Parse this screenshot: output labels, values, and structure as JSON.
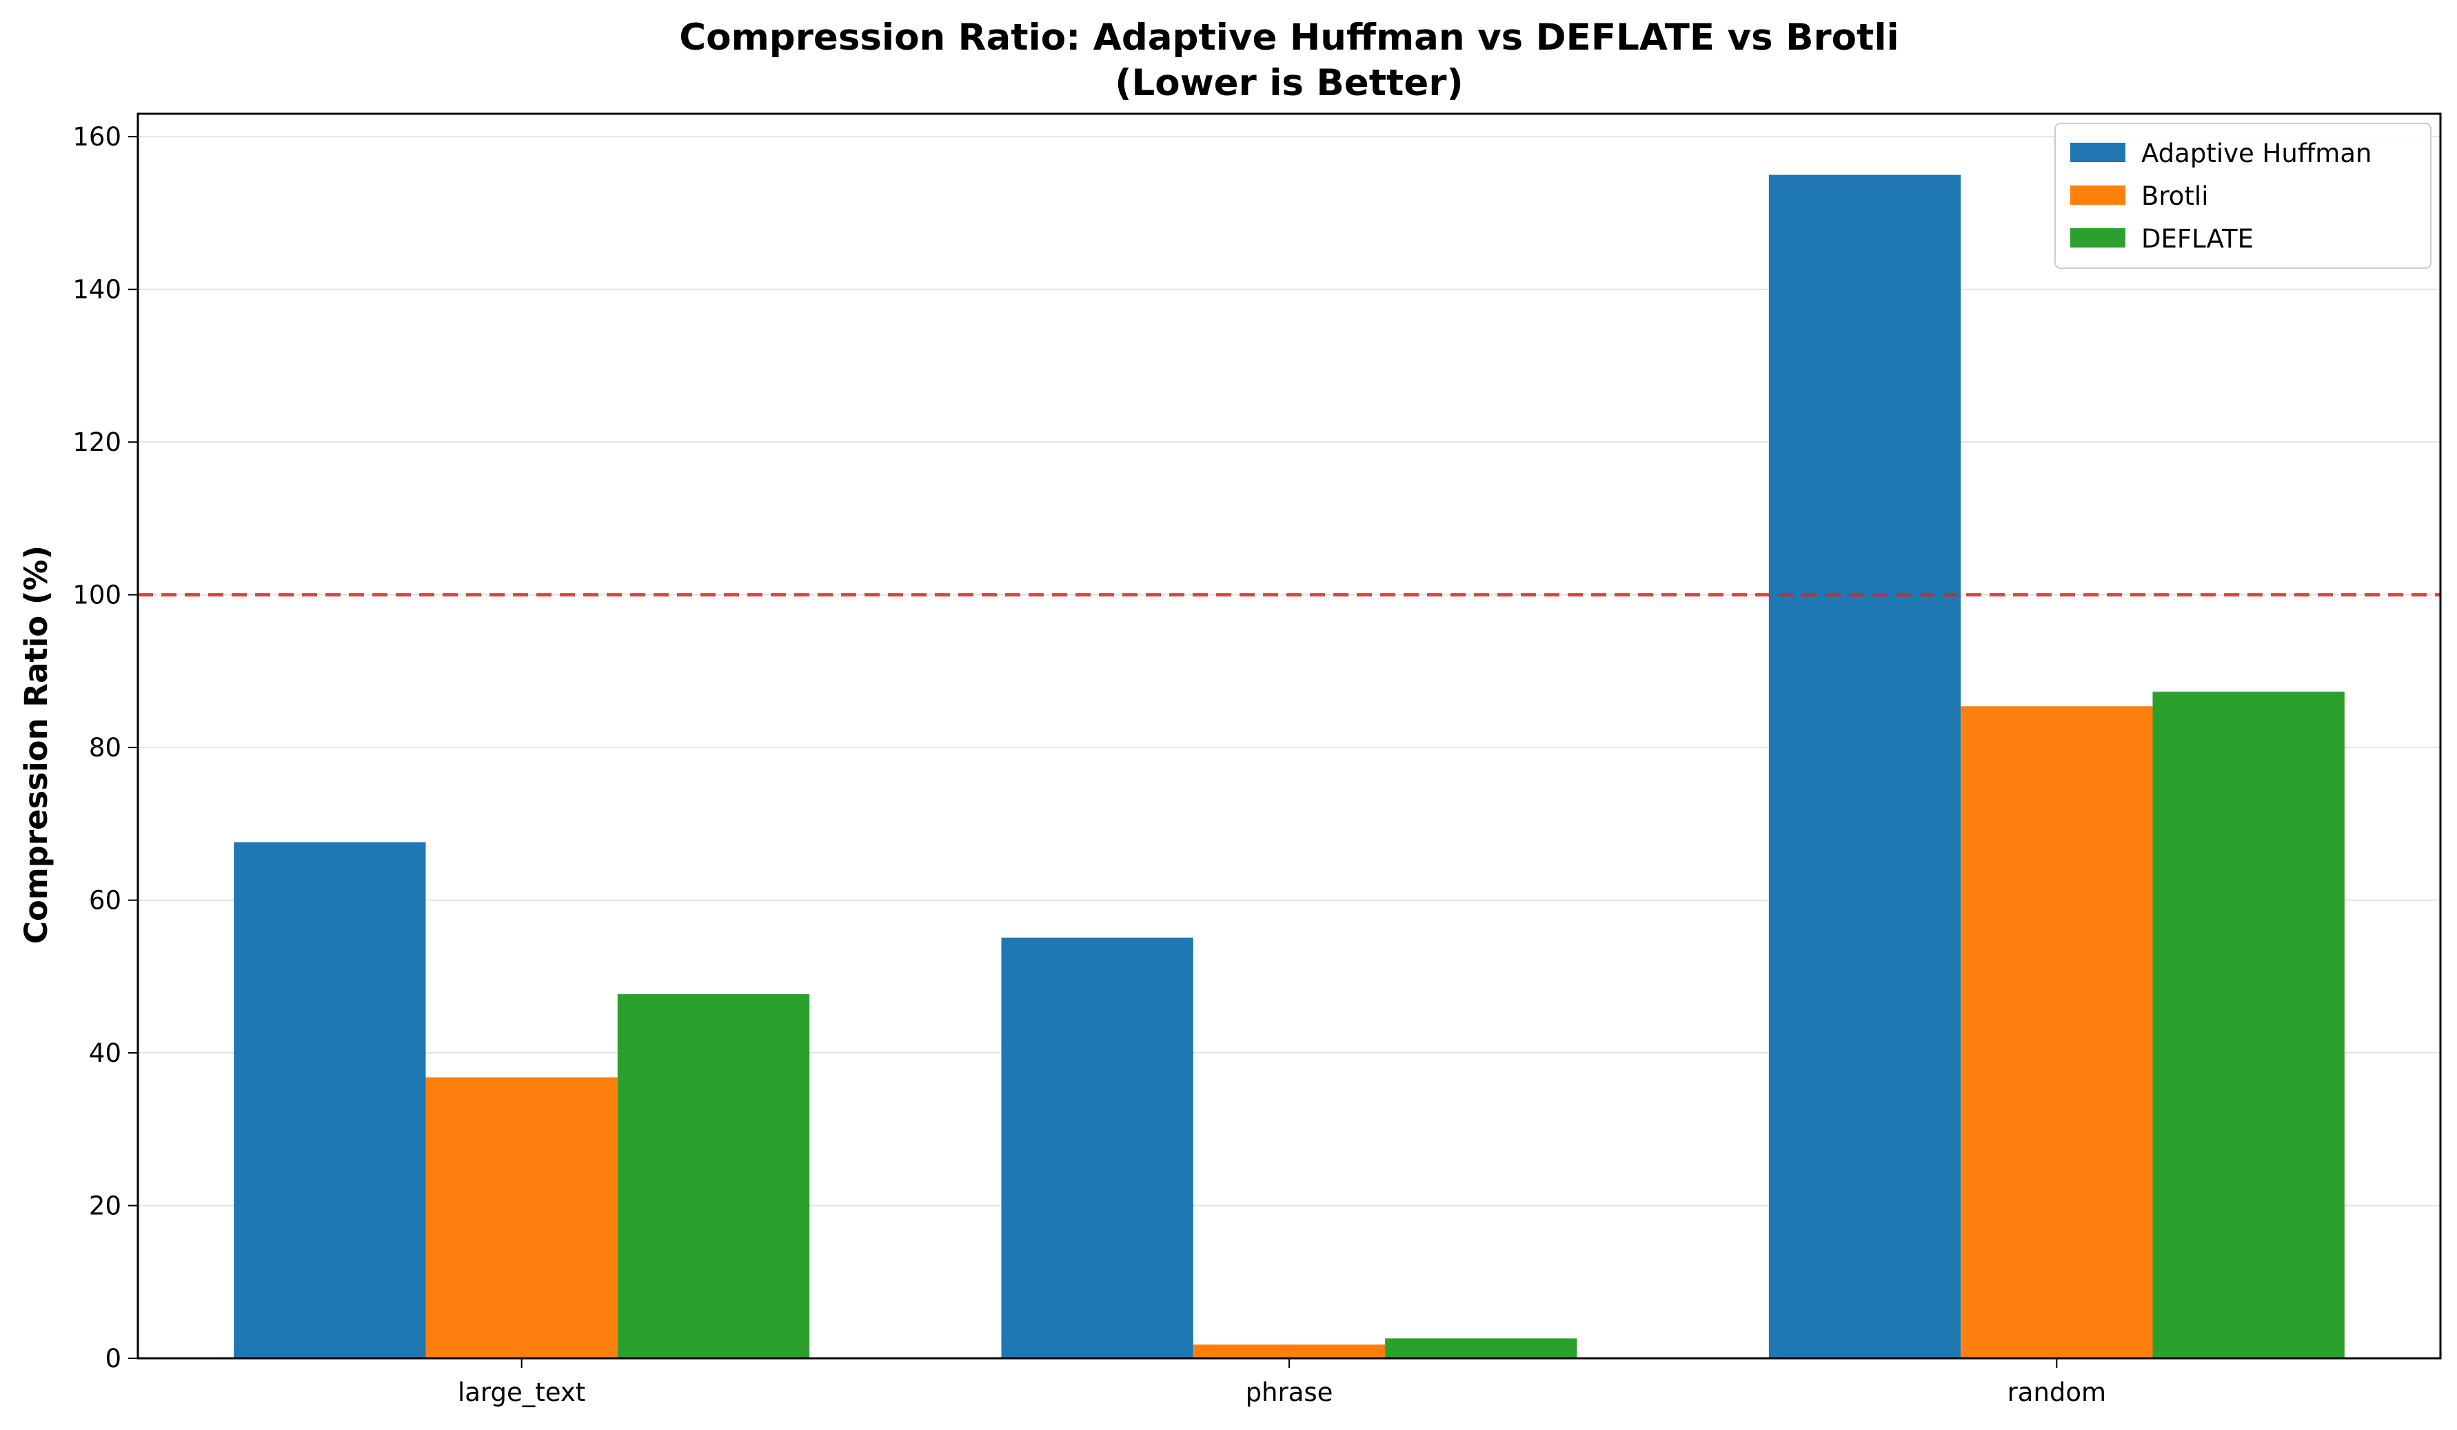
{
  "chart_data": {
    "type": "bar",
    "title": "Compression Ratio: Adaptive Huffman vs DEFLATE vs Brotli",
    "subtitle": "(Lower is Better)",
    "xlabel": "",
    "ylabel": "Compression Ratio (%)",
    "categories": [
      "large_text",
      "phrase",
      "random"
    ],
    "series": [
      {
        "name": "Adaptive Huffman",
        "color": "#1f77b4",
        "values": [
          67.6,
          55.1,
          155.0
        ]
      },
      {
        "name": "Brotli",
        "color": "#ff7f0e",
        "values": [
          36.8,
          1.8,
          85.4
        ]
      },
      {
        "name": "DEFLATE",
        "color": "#2ca02c",
        "values": [
          47.7,
          2.6,
          87.3
        ]
      }
    ],
    "ylim": [
      0,
      163
    ],
    "yticks": [
      0,
      20,
      40,
      60,
      80,
      100,
      120,
      140,
      160
    ],
    "reference_line": {
      "value": 100,
      "color": "#d62728",
      "style": "dashed"
    },
    "grid": "y",
    "legend": "top-right"
  }
}
